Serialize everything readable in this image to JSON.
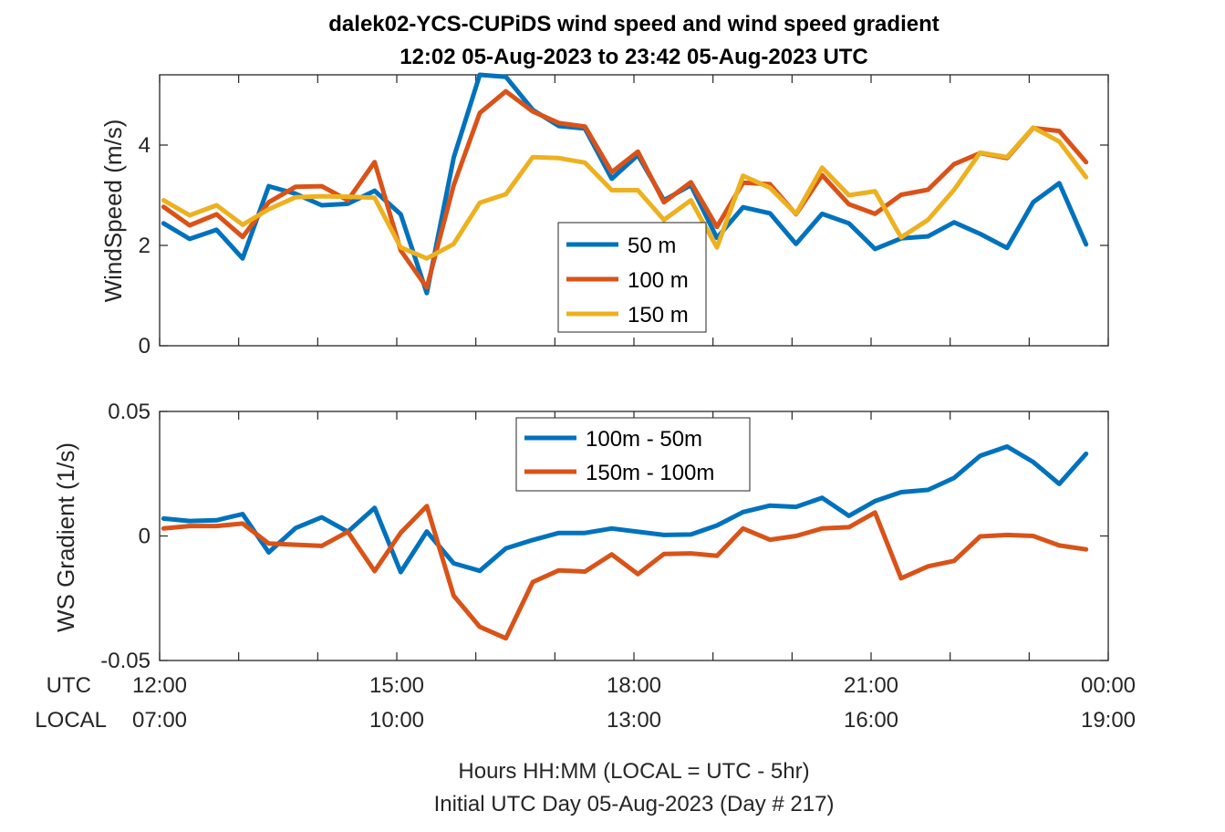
{
  "title_line1": "dalek02-YCS-CUPiDS  wind speed and wind speed gradient",
  "title_line2": "12:02 05-Aug-2023 to 23:42 05-Aug-2023  UTC",
  "xaxis": {
    "row1_label": "UTC",
    "row2_label": "LOCAL",
    "utc_ticks": [
      "12:00",
      "15:00",
      "18:00",
      "21:00",
      "00:00"
    ],
    "local_ticks": [
      "07:00",
      "10:00",
      "13:00",
      "16:00",
      "19:00"
    ],
    "xlabel_line1": "Hours HH:MM  (LOCAL = UTC - 5hr)",
    "xlabel_line2": "Initial UTC Day 05-Aug-2023 (Day # 217)"
  },
  "colors": {
    "blue": "#0072BD",
    "orange": "#D95319",
    "yellow": "#EDB120"
  },
  "chart_data": [
    {
      "type": "line",
      "ylabel": "WindSpeed (m/s)",
      "xlim": [
        12.0,
        24.0
      ],
      "ylim": [
        0,
        5.4
      ],
      "yticks": [
        "0",
        "2",
        "4"
      ],
      "ytick_values": [
        0,
        2,
        4
      ],
      "grid": false,
      "legend_position": "center",
      "x": [
        12.05,
        12.38,
        12.72,
        13.05,
        13.38,
        13.72,
        14.05,
        14.38,
        14.72,
        15.05,
        15.38,
        15.72,
        16.05,
        16.38,
        16.72,
        17.05,
        17.38,
        17.72,
        18.05,
        18.38,
        18.72,
        19.05,
        19.38,
        19.72,
        20.05,
        20.38,
        20.72,
        21.05,
        21.38,
        21.72,
        22.05,
        22.38,
        22.72,
        23.05,
        23.38,
        23.72
      ],
      "series": [
        {
          "name": "50 m",
          "color": "#0072BD",
          "values": [
            2.44,
            2.13,
            2.31,
            1.74,
            3.18,
            3.03,
            2.8,
            2.83,
            3.09,
            2.62,
            1.05,
            3.75,
            5.4,
            5.36,
            4.7,
            4.38,
            4.33,
            3.33,
            3.8,
            2.9,
            3.2,
            2.15,
            2.76,
            2.64,
            2.03,
            2.63,
            2.44,
            1.93,
            2.14,
            2.18,
            2.46,
            2.23,
            1.95,
            2.86,
            3.24,
            2.02
          ]
        },
        {
          "name": "100 m",
          "color": "#D95319",
          "values": [
            2.77,
            2.4,
            2.62,
            2.17,
            2.86,
            3.17,
            3.18,
            2.9,
            3.66,
            1.9,
            1.16,
            3.2,
            4.64,
            5.07,
            4.67,
            4.44,
            4.37,
            3.46,
            3.87,
            2.86,
            3.26,
            2.37,
            3.25,
            3.22,
            2.62,
            3.4,
            2.82,
            2.63,
            3.01,
            3.11,
            3.62,
            3.84,
            3.74,
            4.34,
            4.28,
            3.66
          ]
        },
        {
          "name": "150 m",
          "color": "#EDB120",
          "values": [
            2.9,
            2.6,
            2.8,
            2.41,
            2.72,
            2.96,
            2.98,
            2.97,
            2.95,
            1.96,
            1.74,
            2.03,
            2.85,
            3.02,
            3.76,
            3.74,
            3.65,
            3.1,
            3.1,
            2.51,
            2.9,
            1.96,
            3.39,
            3.15,
            2.63,
            3.55,
            3.0,
            3.08,
            2.16,
            2.51,
            3.11,
            3.85,
            3.76,
            4.35,
            4.07,
            3.36
          ]
        }
      ]
    },
    {
      "type": "line",
      "ylabel": "WS Gradient (1/s)",
      "xlim": [
        12.0,
        24.0
      ],
      "ylim": [
        -0.05,
        0.05
      ],
      "yticks": [
        "-0.05",
        "0",
        "0.05"
      ],
      "ytick_values": [
        -0.05,
        0,
        0.05
      ],
      "grid": false,
      "legend_position": "top-center",
      "x": [
        12.05,
        12.38,
        12.72,
        13.05,
        13.38,
        13.72,
        14.05,
        14.38,
        14.72,
        15.05,
        15.38,
        15.72,
        16.05,
        16.38,
        16.72,
        17.05,
        17.38,
        17.72,
        18.05,
        18.38,
        18.72,
        19.05,
        19.38,
        19.72,
        20.05,
        20.38,
        20.72,
        21.05,
        21.38,
        21.72,
        22.05,
        22.38,
        22.72,
        23.05,
        23.38,
        23.72
      ],
      "series": [
        {
          "name": "100m - 50m",
          "color": "#0072BD",
          "values": [
            0.007,
            0.006,
            0.0063,
            0.0088,
            -0.0066,
            0.0032,
            0.0075,
            0.0017,
            0.0113,
            -0.0145,
            0.0018,
            -0.011,
            -0.014,
            -0.005,
            -0.0016,
            0.0012,
            0.0012,
            0.003,
            0.0017,
            0.0004,
            0.0006,
            0.0042,
            0.0096,
            0.0122,
            0.0117,
            0.0153,
            0.0081,
            0.014,
            0.0176,
            0.0185,
            0.0233,
            0.0322,
            0.0359,
            0.0297,
            0.0209,
            0.033
          ]
        },
        {
          "name": "150m - 100m",
          "color": "#D95319",
          "values": [
            0.003,
            0.004,
            0.004,
            0.005,
            -0.003,
            -0.0035,
            -0.004,
            0.0017,
            -0.0141,
            0.0013,
            0.012,
            -0.024,
            -0.0365,
            -0.0411,
            -0.0185,
            -0.0138,
            -0.0143,
            -0.0074,
            -0.0153,
            -0.0072,
            -0.007,
            -0.008,
            0.003,
            -0.0015,
            0.0,
            0.003,
            0.0035,
            0.0094,
            -0.017,
            -0.0122,
            -0.01,
            -0.0002,
            0.0004,
            0.0,
            -0.0038,
            -0.0054
          ]
        }
      ]
    }
  ]
}
